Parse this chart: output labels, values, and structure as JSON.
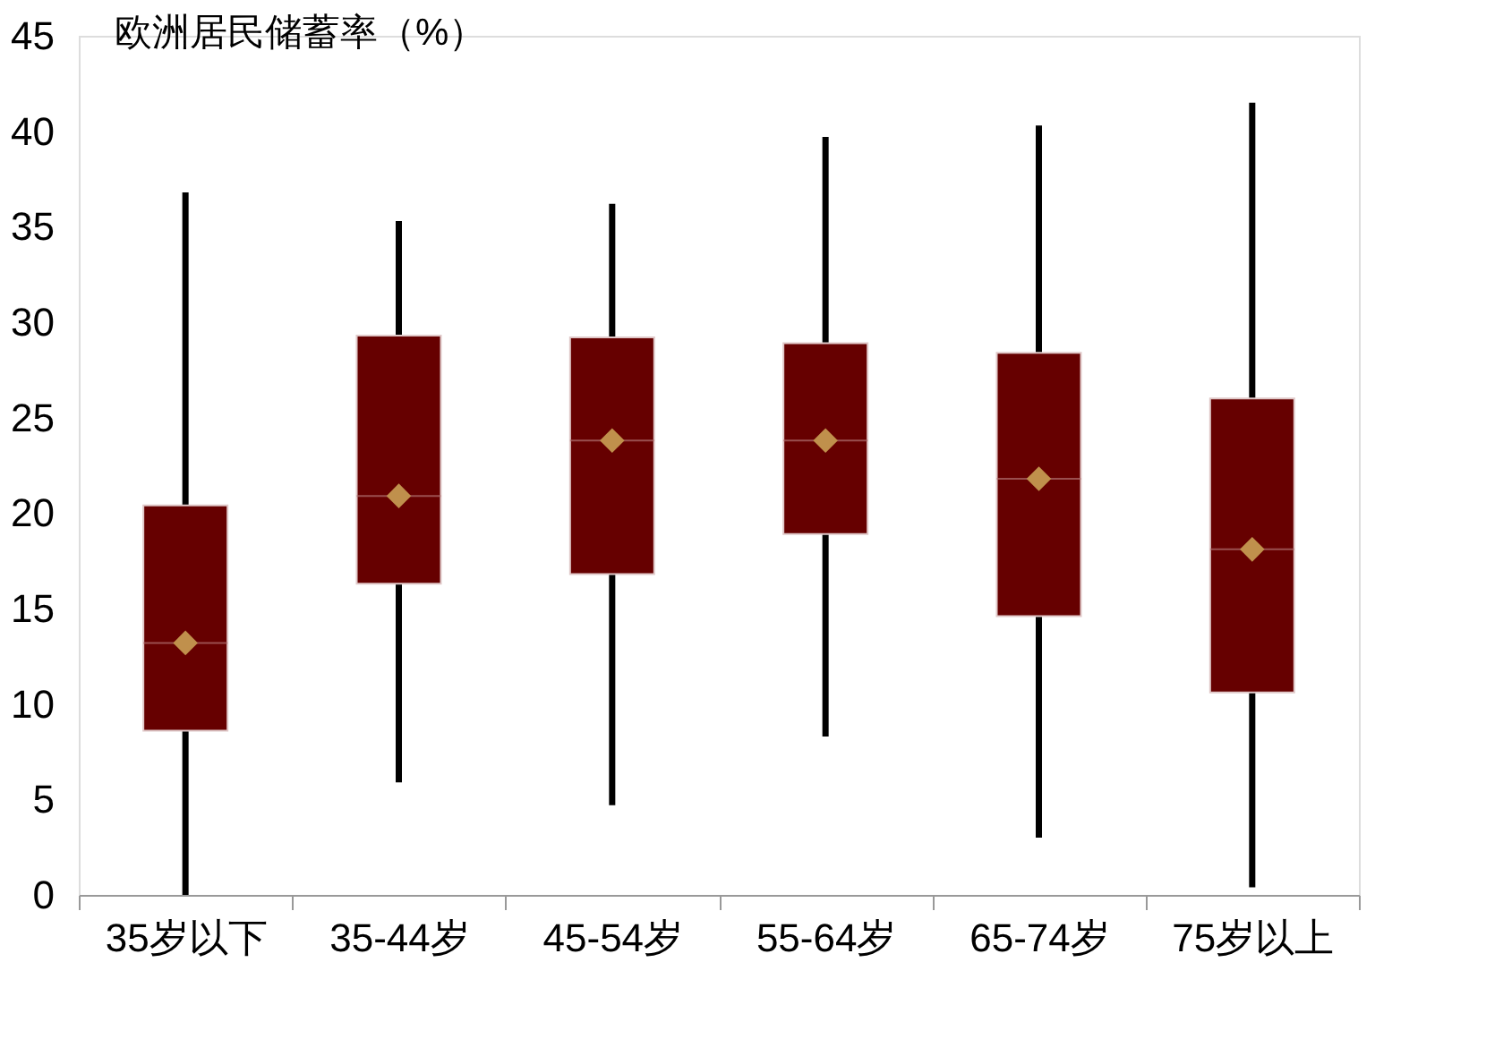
{
  "chart_data": {
    "type": "box",
    "title": "欧洲居民储蓄率（%）",
    "categories": [
      "35岁以下",
      "35-44岁",
      "45-54岁",
      "55-64岁",
      "65-74岁",
      "75岁以上"
    ],
    "boxes": [
      {
        "low": 0,
        "q1": 8.6,
        "median": 13.2,
        "q3": 20.4,
        "high": 36.8,
        "mean": 13.2
      },
      {
        "low": 5.9,
        "q1": 16.3,
        "median": 20.9,
        "q3": 29.3,
        "high": 35.3,
        "mean": 20.9
      },
      {
        "low": 4.7,
        "q1": 16.8,
        "median": 23.8,
        "q3": 29.2,
        "high": 36.2,
        "mean": 23.8
      },
      {
        "low": 8.3,
        "q1": 18.9,
        "median": 23.8,
        "q3": 28.9,
        "high": 39.7,
        "mean": 23.8
      },
      {
        "low": 3.0,
        "q1": 14.6,
        "median": 21.8,
        "q3": 28.4,
        "high": 40.3,
        "mean": 21.8
      },
      {
        "low": 0.4,
        "q1": 10.6,
        "median": 18.1,
        "q3": 26.0,
        "high": 41.5,
        "mean": 18.1
      }
    ],
    "colors": [
      "#660000",
      "#660000",
      "#660000",
      "#660000",
      "#660000",
      "#660000"
    ],
    "ylim": [
      0,
      45
    ],
    "yticks": [
      0,
      5,
      10,
      15,
      20,
      25,
      30,
      35,
      40,
      45
    ],
    "grid": false
  }
}
